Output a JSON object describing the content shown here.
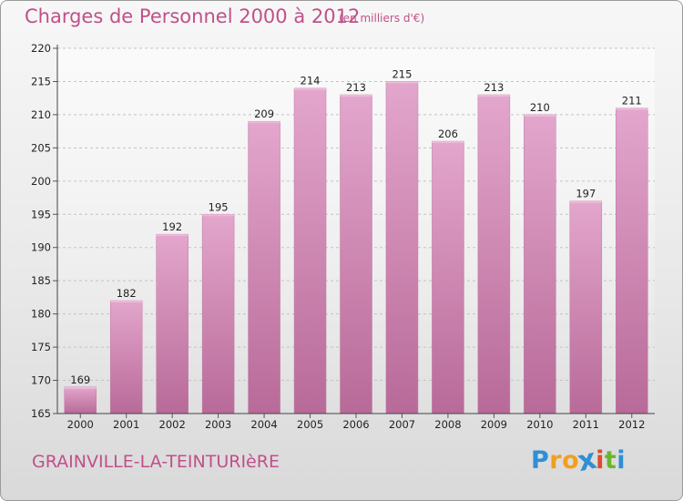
{
  "chart_data": {
    "type": "bar",
    "title": "Charges de Personnel 2000 à 2012",
    "subtitle": "(en milliers d'€)",
    "categories": [
      "2000",
      "2001",
      "2002",
      "2003",
      "2004",
      "2005",
      "2006",
      "2007",
      "2008",
      "2009",
      "2010",
      "2011",
      "2012"
    ],
    "values": [
      169,
      182,
      192,
      195,
      209,
      214,
      213,
      215,
      206,
      213,
      210,
      197,
      211
    ],
    "ylim": [
      165,
      220
    ],
    "yticks": [
      165,
      170,
      175,
      180,
      185,
      190,
      195,
      200,
      205,
      210,
      215,
      220
    ],
    "xlabel": "",
    "ylabel": "",
    "grid": true,
    "bar_color": "#d88cbb"
  },
  "footer": {
    "place": "GRAINVILLE-LA-TEINTURIèRE",
    "logo_letters": [
      "P",
      "r",
      "o",
      "x",
      "i",
      "t",
      "i"
    ],
    "logo_colors": [
      "#2f8fd6",
      "#f0a020",
      "#f0a020",
      "#2f8fd6",
      "#e04a2a",
      "#6bb52f",
      "#2f8fd6"
    ]
  }
}
